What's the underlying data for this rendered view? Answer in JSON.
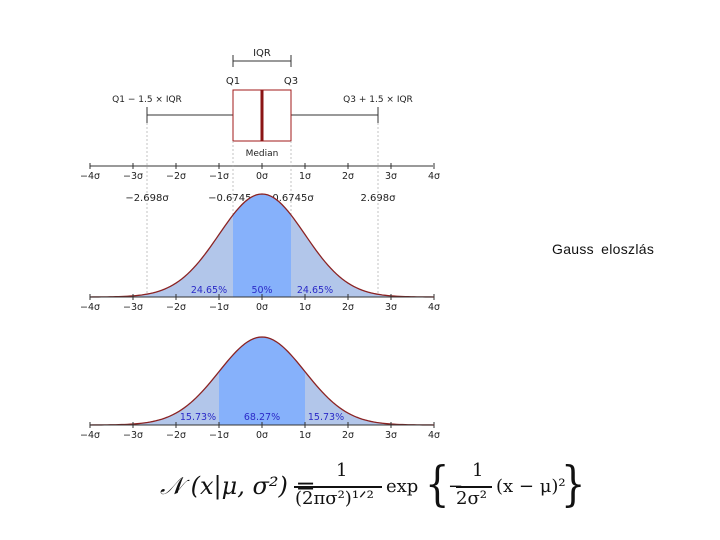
{
  "side_title": "Gauss eloszlás",
  "boxplot": {
    "iqr_label": "IQR",
    "q1_label": "Q1",
    "q3_label": "Q3",
    "lower_whisker_label": "Q1 − 1.5 × IQR",
    "upper_whisker_label": "Q3 + 1.5 × IQR",
    "median_label": "Median",
    "q1_sigma": -0.6745,
    "q3_sigma": 0.6745,
    "whisker_low_sigma": -2.698,
    "whisker_high_sigma": 2.698
  },
  "sigma_ticks": [
    "−4σ",
    "−3σ",
    "−2σ",
    "−1σ",
    "0σ",
    "1σ",
    "2σ",
    "3σ",
    "4σ"
  ],
  "quartile_values": [
    "−2.698σ",
    "−0.6745σ",
    "0.6745σ",
    "2.698σ"
  ],
  "density1": {
    "regions": [
      "24.65%",
      "50%",
      "24.65%"
    ]
  },
  "density2": {
    "regions": [
      "15.73%",
      "68.27%",
      "15.73%"
    ]
  },
  "formula": {
    "lhs": "𝒩 (x|μ, σ²) =",
    "num1": "1",
    "den1": "(2πσ²)¹ᐟ²",
    "exp": "exp",
    "brace_open": "{",
    "minus": "−",
    "num2": "1",
    "den2": "2σ²",
    "tail": "(x − μ)²",
    "brace_close": "}"
  },
  "colors": {
    "curve": "#8b2323",
    "inner_fill": "#86b1fb",
    "outer_fill": "#b2c6ea",
    "box": "#a01818",
    "axis": "#333333",
    "percent_text": "#2b2bc8"
  }
}
